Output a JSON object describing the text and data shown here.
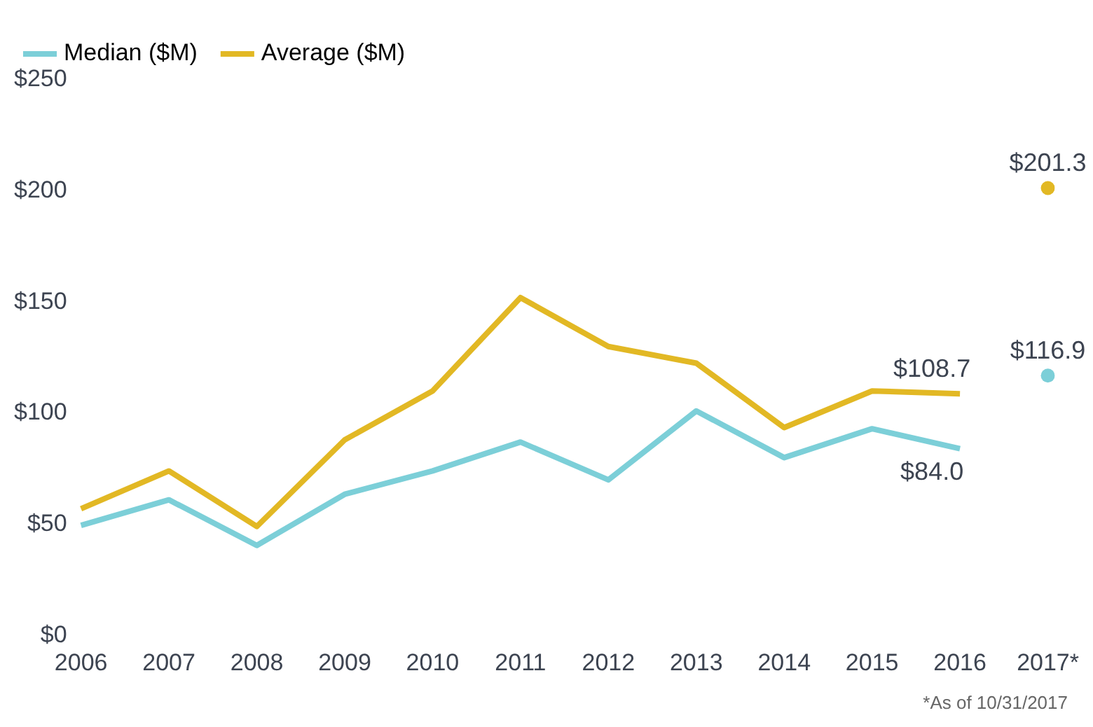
{
  "chart_data": {
    "type": "line",
    "categories": [
      "2006",
      "2007",
      "2008",
      "2009",
      "2010",
      "2011",
      "2012",
      "2013",
      "2014",
      "2015",
      "2016",
      "2017*"
    ],
    "series": [
      {
        "name": "Median ($M)",
        "color": "#7ccfd8",
        "values": [
          49.5,
          61,
          40.5,
          63.5,
          74,
          87,
          70,
          101,
          80,
          93,
          84.0,
          null
        ],
        "value_labels": [
          null,
          null,
          null,
          null,
          null,
          null,
          null,
          null,
          null,
          null,
          "$84.0",
          null
        ]
      },
      {
        "name": "Average ($M)",
        "color": "#e2b824",
        "values": [
          57,
          74,
          49,
          88,
          110,
          152,
          130,
          122.5,
          93.5,
          110,
          108.7,
          null
        ],
        "value_labels": [
          null,
          null,
          null,
          null,
          null,
          null,
          null,
          null,
          null,
          null,
          "$108.7",
          null
        ]
      },
      {
        "type": "scatter",
        "marker": "circle",
        "color": "#7ccfd8",
        "x": [
          "2017*"
        ],
        "values": [
          116.9
        ],
        "value_labels": [
          "$116.9"
        ]
      },
      {
        "type": "scatter",
        "marker": "circle",
        "color": "#e2b824",
        "x": [
          "2017*"
        ],
        "values": [
          201.3
        ],
        "value_labels": [
          "$201.3"
        ]
      }
    ],
    "ylim": [
      0,
      250
    ],
    "yticks": [
      {
        "value": 0,
        "label": "$0"
      },
      {
        "value": 50,
        "label": "$50"
      },
      {
        "value": 100,
        "label": "$100"
      },
      {
        "value": 150,
        "label": "$150"
      },
      {
        "value": 200,
        "label": "$200"
      },
      {
        "value": 250,
        "label": "$250"
      }
    ],
    "grid": false,
    "legend": "top",
    "marker": "none",
    "annotations": [
      "*As of 10/31/2017"
    ]
  }
}
